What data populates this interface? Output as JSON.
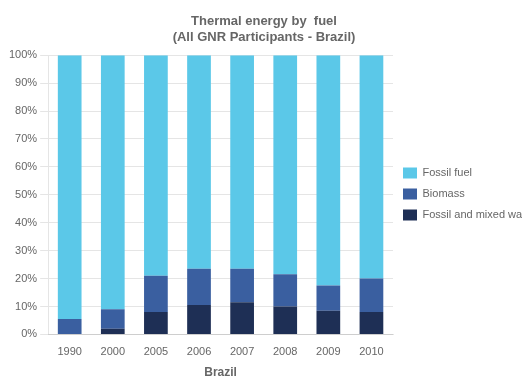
{
  "chart_data": {
    "type": "bar",
    "title": "Thermal energy by  fuel\n(All GNR Participants - Brazil)",
    "x_label": "Brazil",
    "categories": [
      "1990",
      "2000",
      "2005",
      "2006",
      "2007",
      "2008",
      "2009",
      "2010"
    ],
    "series": [
      {
        "name": "Fossil and mixed wastes",
        "color": "#1E2F55",
        "values": [
          0.0,
          2.0,
          8.0,
          10.5,
          11.5,
          10.0,
          8.5,
          8.0
        ]
      },
      {
        "name": "Biomass",
        "color": "#3A5FA0",
        "values": [
          5.5,
          7.0,
          13.0,
          13.0,
          12.0,
          11.5,
          9.0,
          12.0
        ]
      },
      {
        "name": "Fossil fuel",
        "color": "#5BC8E8",
        "values": [
          94.5,
          91.0,
          79.0,
          76.5,
          76.5,
          78.5,
          82.5,
          80.0
        ]
      }
    ],
    "stacked": true,
    "ylim": [
      0,
      100
    ],
    "yticks": [
      {
        "value": 0,
        "label": "0%"
      },
      {
        "value": 10,
        "label": "10%"
      },
      {
        "value": 20,
        "label": "20%"
      },
      {
        "value": 30,
        "label": "30%"
      },
      {
        "value": 40,
        "label": "40%"
      },
      {
        "value": 50,
        "label": "50%"
      },
      {
        "value": 60,
        "label": "60%"
      },
      {
        "value": 70,
        "label": "70%"
      },
      {
        "value": 80,
        "label": "80%"
      },
      {
        "value": 90,
        "label": "90%"
      },
      {
        "value": 100,
        "label": "100%"
      }
    ],
    "grid": "y",
    "legend": "right"
  }
}
